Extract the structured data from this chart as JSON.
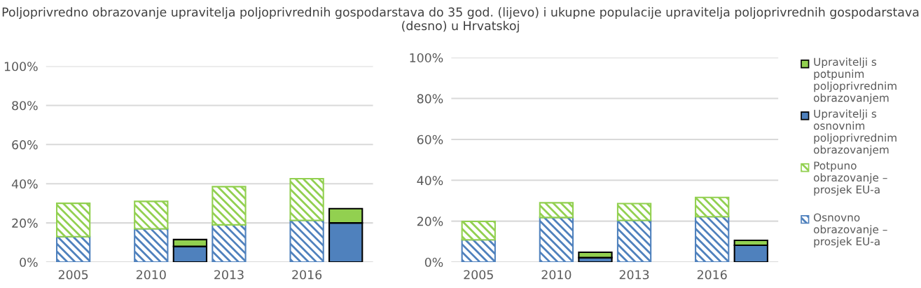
{
  "chart_data": [
    {
      "type": "bar",
      "stacked": true,
      "title": "Poljoprivredno obrazovanje upravitelja poljoprivrednih gospodarstava do 35 god. (lijevo) i ukupne populacije upravitelja poljoprivrednih gospodarstava (desno) u Hrvatskoj",
      "categories": [
        "2005",
        null,
        "2010",
        null,
        "2013",
        null,
        "2016",
        null
      ],
      "ylim": [
        0,
        100
      ],
      "yticks": [
        {
          "value": 0,
          "label": "0%"
        },
        {
          "value": 20,
          "label": "20%"
        },
        {
          "value": 40,
          "label": "40%"
        },
        {
          "value": 60,
          "label": "60%"
        },
        {
          "value": 80,
          "label": "80%"
        },
        {
          "value": 100,
          "label": "100%"
        }
      ],
      "grid": "y",
      "series": [
        {
          "color": "#4f81bd",
          "values": [
            13,
            null,
            17,
            null,
            19,
            null,
            21.3,
            null
          ]
        },
        {
          "color": "#92d050",
          "values": [
            17,
            null,
            14,
            null,
            19.5,
            null,
            21.3,
            null
          ]
        },
        {
          "color": "#4f81bd",
          "values": [
            null,
            null,
            null,
            8,
            null,
            null,
            null,
            20
          ]
        },
        {
          "color": "#92d050",
          "values": [
            null,
            null,
            null,
            3.5,
            null,
            null,
            null,
            7.3
          ]
        }
      ]
    },
    {
      "type": "bar",
      "stacked": true,
      "legend": "right",
      "categories": [
        "2005",
        null,
        "2010",
        null,
        "2013",
        null,
        "2016",
        null
      ],
      "ylim": [
        0,
        100
      ],
      "yticks": [
        {
          "value": 0,
          "label": "0%"
        },
        {
          "value": 20,
          "label": "20%"
        },
        {
          "value": 40,
          "label": "40%"
        },
        {
          "value": 60,
          "label": "60%"
        },
        {
          "value": 80,
          "label": "80%"
        },
        {
          "value": 100,
          "label": "100%"
        }
      ],
      "grid": "y",
      "series": [
        {
          "name": "Osnovno obrazovanje – prosjek EU-a",
          "color": "#4f81bd",
          "values": [
            10.9,
            null,
            21.8,
            null,
            20.4,
            null,
            22.2,
            null
          ]
        },
        {
          "name": "Potpuno obrazovanje – prosjek EU-a",
          "color": "#92d050",
          "values": [
            9,
            null,
            7.2,
            null,
            8.2,
            null,
            9.4,
            null
          ]
        },
        {
          "name": "Upravitelji s osnovnim poljoprivrednim obrazovanjem",
          "color": "#4f81bd",
          "values": [
            null,
            null,
            null,
            2.2,
            null,
            null,
            null,
            8.2
          ]
        },
        {
          "name": "Upravitelji s potpunim poljoprivrednim obrazovanjem",
          "color": "#92d050",
          "values": [
            null,
            null,
            null,
            2.6,
            null,
            null,
            null,
            2.4
          ]
        }
      ]
    }
  ]
}
